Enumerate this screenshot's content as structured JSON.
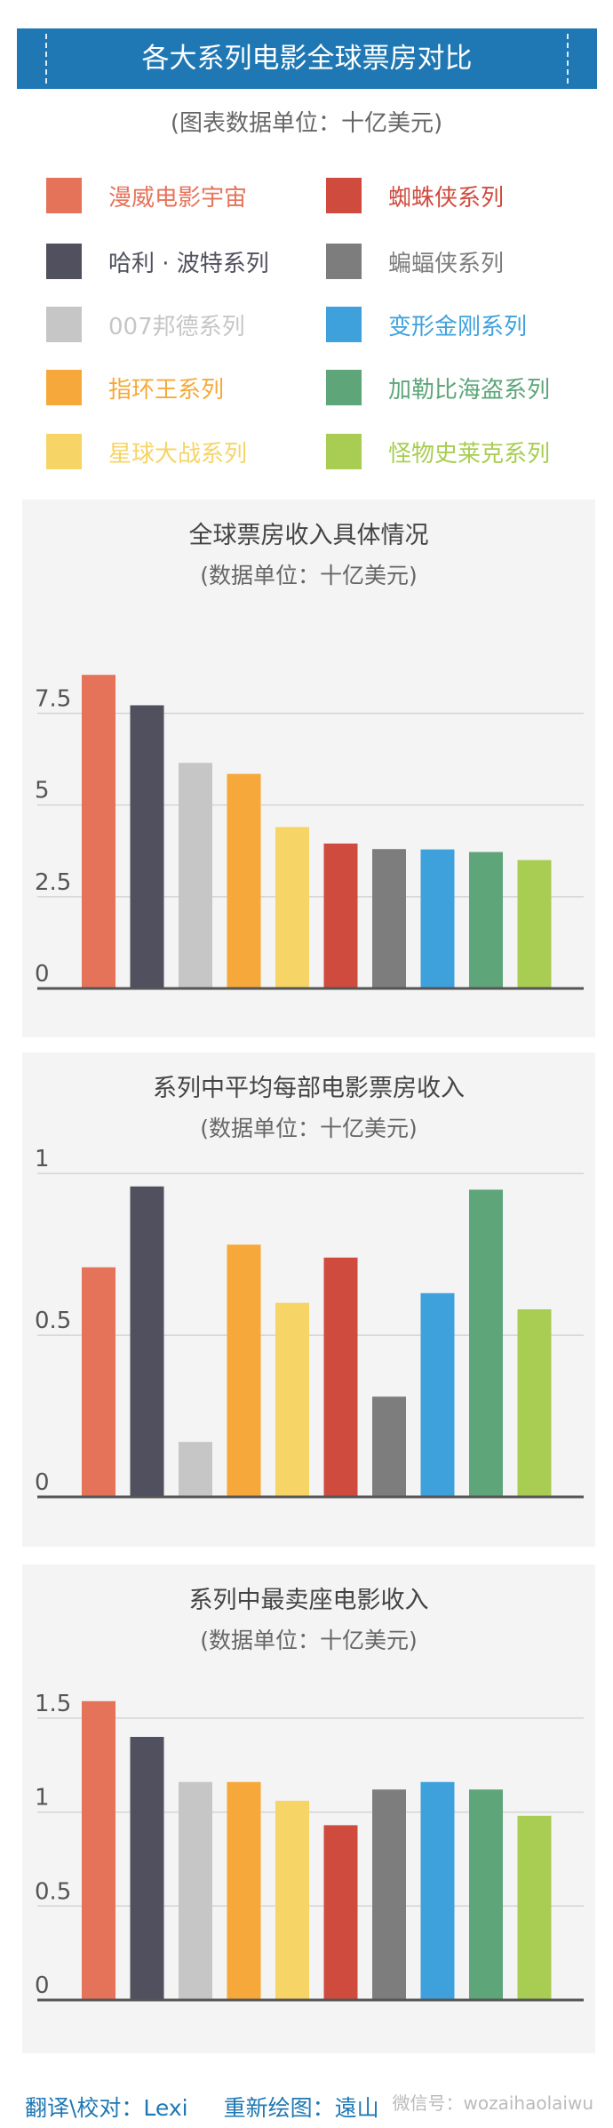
{
  "header": {
    "title": "各大系列电影全球票房对比"
  },
  "unit_note": "(图表数据单位：十亿美元)",
  "legend": [
    {
      "label": "漫威电影宇宙",
      "color": "#e5735a"
    },
    {
      "label": "蜘蛛侠系列",
      "color": "#cf4b3e"
    },
    {
      "label": "哈利 · 波特系列",
      "color": "#50505e"
    },
    {
      "label": "蝙蝠侠系列",
      "color": "#7d7d7d"
    },
    {
      "label": "007邦德系列",
      "color": "#c6c6c6"
    },
    {
      "label": "变形金刚系列",
      "color": "#3fa1dc"
    },
    {
      "label": "指环王系列",
      "color": "#f6a93a"
    },
    {
      "label": "加勒比海盗系列",
      "color": "#5ea57a"
    },
    {
      "label": "星球大战系列",
      "color": "#f6d466"
    },
    {
      "label": "怪物史莱克系列",
      "color": "#a8cd52"
    }
  ],
  "chart_data": [
    {
      "type": "bar",
      "title": "全球票房收入具体情况",
      "subtitle": "(数据单位：十亿美元)",
      "categories": [
        "漫威电影宇宙",
        "哈利 · 波特系列",
        "007邦德系列",
        "指环王系列",
        "星球大战系列",
        "蜘蛛侠系列",
        "蝙蝠侠系列",
        "变形金刚系列",
        "加勒比海盗系列",
        "怪物史莱克系列"
      ],
      "values": [
        8.55,
        7.72,
        6.15,
        5.85,
        4.4,
        3.95,
        3.8,
        3.79,
        3.72,
        3.5
      ],
      "colors": [
        "#e5735a",
        "#50505e",
        "#c6c6c6",
        "#f6a93a",
        "#f6d466",
        "#cf4b3e",
        "#7d7d7d",
        "#3fa1dc",
        "#5ea57a",
        "#a8cd52"
      ],
      "yticks": [
        0,
        2.5,
        5,
        7.5
      ],
      "ytick_labels": [
        "0",
        "2.5",
        "5",
        "7.5"
      ],
      "ylim": [
        0,
        9.5
      ],
      "grid": true
    },
    {
      "type": "bar",
      "title": "系列中平均每部电影票房收入",
      "subtitle": "(数据单位：十亿美元)",
      "categories": [
        "漫威电影宇宙",
        "哈利 · 波特系列",
        "007邦德系列",
        "指环王系列",
        "星球大战系列",
        "蜘蛛侠系列",
        "蝙蝠侠系列",
        "变形金刚系列",
        "加勒比海盗系列",
        "怪物史莱克系列"
      ],
      "values": [
        0.71,
        0.96,
        0.17,
        0.78,
        0.6,
        0.74,
        0.31,
        0.63,
        0.95,
        0.58
      ],
      "colors": [
        "#e5735a",
        "#50505e",
        "#c6c6c6",
        "#f6a93a",
        "#f6d466",
        "#cf4b3e",
        "#7d7d7d",
        "#3fa1dc",
        "#5ea57a",
        "#a8cd52"
      ],
      "yticks": [
        0,
        0.5,
        1
      ],
      "ytick_labels": [
        "0",
        "0.5",
        "1"
      ],
      "ylim": [
        0,
        1.05
      ],
      "grid": true
    },
    {
      "type": "bar",
      "title": "系列中最卖座电影收入",
      "subtitle": "(数据单位：十亿美元)",
      "categories": [
        "漫威电影宇宙",
        "哈利 · 波特系列",
        "007邦德系列",
        "指环王系列",
        "星球大战系列",
        "蜘蛛侠系列",
        "蝙蝠侠系列",
        "变形金刚系列",
        "加勒比海盗系列",
        "怪物史莱克系列"
      ],
      "values": [
        1.59,
        1.4,
        1.16,
        1.16,
        1.06,
        0.93,
        1.12,
        1.16,
        1.12,
        0.98
      ],
      "colors": [
        "#e5735a",
        "#50505e",
        "#c6c6c6",
        "#f6a93a",
        "#f6d466",
        "#cf4b3e",
        "#7d7d7d",
        "#3fa1dc",
        "#5ea57a",
        "#a8cd52"
      ],
      "yticks": [
        0,
        0.5,
        1,
        1.5
      ],
      "ytick_labels": [
        "0",
        "0.5",
        "1",
        "1.5"
      ],
      "ylim": [
        0,
        1.75
      ],
      "grid": true
    }
  ],
  "footer": {
    "credit_translate": "翻译\\校对：Lexi",
    "credit_redraw": "重新绘图：遠山"
  },
  "watermark": "微信号：wozaihaolaiwu"
}
